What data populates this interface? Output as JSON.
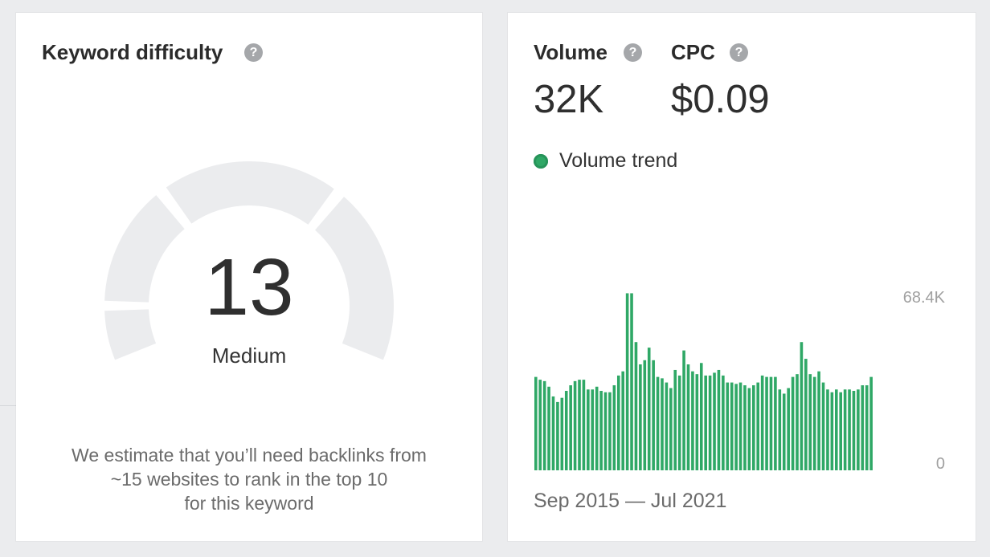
{
  "keyword_difficulty": {
    "title": "Keyword difficulty",
    "help_icon": "question-mark-icon",
    "score": "13",
    "level": "Medium",
    "score_value": 13,
    "score_max": 100,
    "description_lines": [
      "We estimate that you’ll need backlinks from",
      "~15 websites to rank in the top 10",
      "for this keyword"
    ]
  },
  "volume": {
    "title": "Volume",
    "value": "32K",
    "help_icon": "question-mark-icon"
  },
  "cpc": {
    "title": "CPC",
    "value": "$0.09",
    "help_icon": "question-mark-icon"
  },
  "trend": {
    "legend_label": "Volume trend",
    "date_range": "Sep 2015 — Jul 2021"
  },
  "colors": {
    "bar": "#2fa866",
    "gauge_track": "#ebecee",
    "text": "#2f2f2f"
  },
  "chart_data": {
    "type": "bar",
    "start": "Sep 2015",
    "end": "Jul 2021",
    "y_tick_labels": [
      "68.4K",
      "0"
    ],
    "ylim": [
      0,
      68400
    ],
    "values": [
      36850,
      35750,
      35200,
      33000,
      29150,
      26950,
      28600,
      31350,
      33550,
      35200,
      35750,
      35750,
      31900,
      31900,
      33000,
      31350,
      30800,
      30800,
      33550,
      37400,
      39050,
      69850,
      69850,
      50600,
      41800,
      43450,
      48400,
      43450,
      36850,
      36300,
      34650,
      32450,
      39600,
      37400,
      47300,
      41800,
      39050,
      37950,
      42350,
      37400,
      37400,
      38500,
      39600,
      37400,
      34650,
      34650,
      34100,
      34650,
      33550,
      32450,
      33550,
      34650,
      37400,
      36850,
      36850,
      36850,
      31900,
      30250,
      32450,
      36850,
      37950,
      50600,
      44000,
      37950,
      36850,
      39050,
      34650,
      31900,
      30800,
      31900,
      30800,
      31900,
      31900,
      31350,
      31900,
      33550,
      33550,
      36850
    ]
  }
}
